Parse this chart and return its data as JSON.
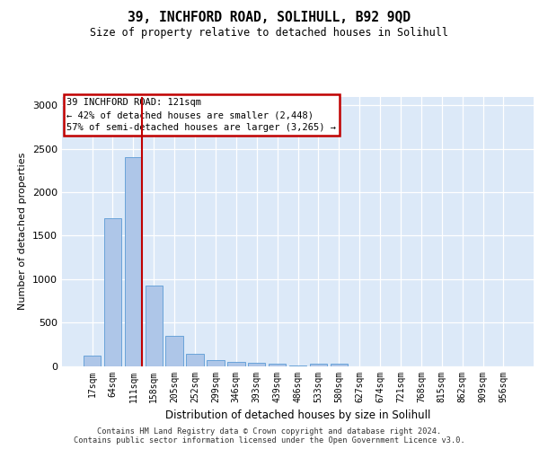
{
  "title": "39, INCHFORD ROAD, SOLIHULL, B92 9QD",
  "subtitle": "Size of property relative to detached houses in Solihull",
  "xlabel": "Distribution of detached houses by size in Solihull",
  "ylabel": "Number of detached properties",
  "categories": [
    "17sqm",
    "64sqm",
    "111sqm",
    "158sqm",
    "205sqm",
    "252sqm",
    "299sqm",
    "346sqm",
    "393sqm",
    "439sqm",
    "486sqm",
    "533sqm",
    "580sqm",
    "627sqm",
    "674sqm",
    "721sqm",
    "768sqm",
    "815sqm",
    "862sqm",
    "909sqm",
    "956sqm"
  ],
  "values": [
    120,
    1700,
    2400,
    920,
    350,
    140,
    70,
    45,
    35,
    25,
    5,
    30,
    28,
    0,
    0,
    0,
    0,
    0,
    0,
    0,
    0
  ],
  "bar_color": "#aec6e8",
  "bar_edge_color": "#5b9bd5",
  "highlight_bar_index": 2,
  "highlight_bar_edge_color": "#c00000",
  "annotation_title": "39 INCHFORD ROAD: 121sqm",
  "annotation_line1": "← 42% of detached houses are smaller (2,448)",
  "annotation_line2": "57% of semi-detached houses are larger (3,265) →",
  "annotation_box_facecolor": "#ffffff",
  "annotation_box_edgecolor": "#c00000",
  "ylim": [
    0,
    3100
  ],
  "yticks": [
    0,
    500,
    1000,
    1500,
    2000,
    2500,
    3000
  ],
  "background_color": "#dce9f8",
  "grid_color": "#ffffff",
  "footer_line1": "Contains HM Land Registry data © Crown copyright and database right 2024.",
  "footer_line2": "Contains public sector information licensed under the Open Government Licence v3.0."
}
